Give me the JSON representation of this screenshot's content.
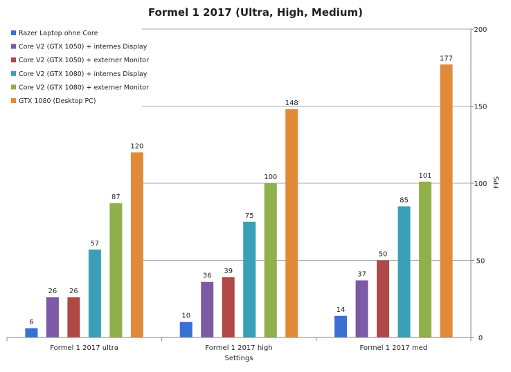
{
  "chart_data": {
    "type": "bar",
    "title": "Formel 1 2017 (Ultra, High, Medium)",
    "xlabel": "Settings",
    "ylabel": "FPS",
    "y_axis_side": "right",
    "ylim": [
      0,
      200
    ],
    "yticks": [
      0,
      50,
      100,
      150,
      200
    ],
    "grid": true,
    "legend_position": "top-left",
    "categories": [
      "Formel 1 2017 ultra",
      "Formel 1 2017 high",
      "Formel 1 2017 med"
    ],
    "series": [
      {
        "name": "Razer Laptop ohne Core",
        "color": "#3b6fd4",
        "values": [
          6,
          10,
          14
        ]
      },
      {
        "name": "Core V2 (GTX 1050) + internes Display",
        "color": "#7b5aa6",
        "values": [
          26,
          36,
          37
        ]
      },
      {
        "name": "Core V2 (GTX 1050) + externer Monitor",
        "color": "#b04848",
        "values": [
          26,
          39,
          50
        ]
      },
      {
        "name": "Core V2 (GTX 1080) + internes Display",
        "color": "#3aa0b8",
        "values": [
          57,
          75,
          85
        ]
      },
      {
        "name": "Core V2 (GTX 1080) + externer Monitor",
        "color": "#8fb04a",
        "values": [
          87,
          100,
          101
        ]
      },
      {
        "name": "GTX 1080 (Desktop PC)",
        "color": "#e08a3a",
        "values": [
          120,
          148,
          177
        ]
      }
    ]
  }
}
